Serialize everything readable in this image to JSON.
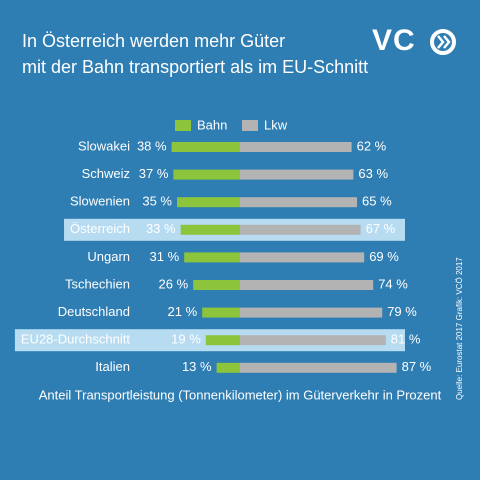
{
  "chart_data": {
    "type": "bar",
    "title_lines": [
      "In Österreich werden mehr Güter",
      "mit der Bahn transportiert als im EU-Schnitt"
    ],
    "logo": "VC",
    "categories": [
      "Slowakei",
      "Schweiz",
      "Slowenien",
      "Österreich",
      "Ungarn",
      "Tschechien",
      "Deutschland",
      "EU28-Durchschnitt",
      "Italien"
    ],
    "series": [
      {
        "name": "Bahn",
        "color": "#8cc43c",
        "values": [
          38,
          37,
          35,
          33,
          31,
          26,
          21,
          19,
          13
        ],
        "value_labels": [
          "38 %",
          "37 %",
          "35 %",
          "33 %",
          "31 %",
          "26 %",
          "21 %",
          "19 %",
          "13 %"
        ]
      },
      {
        "name": "Lkw",
        "color": "#b3b3b3",
        "values": [
          62,
          63,
          65,
          67,
          69,
          74,
          79,
          81,
          87
        ],
        "value_labels": [
          "62 %",
          "63 %",
          "65 %",
          "67 %",
          "69 %",
          "74 %",
          "79 %",
          "81 %",
          "87 %"
        ]
      }
    ],
    "highlight": [
      3,
      7
    ],
    "note": "Anteil Transportleistung (Tonnenkilometer) im Güterverkehr in Prozent",
    "source": "Quelle: Eurostat 2017 Grafik: VCÖ 2017"
  }
}
